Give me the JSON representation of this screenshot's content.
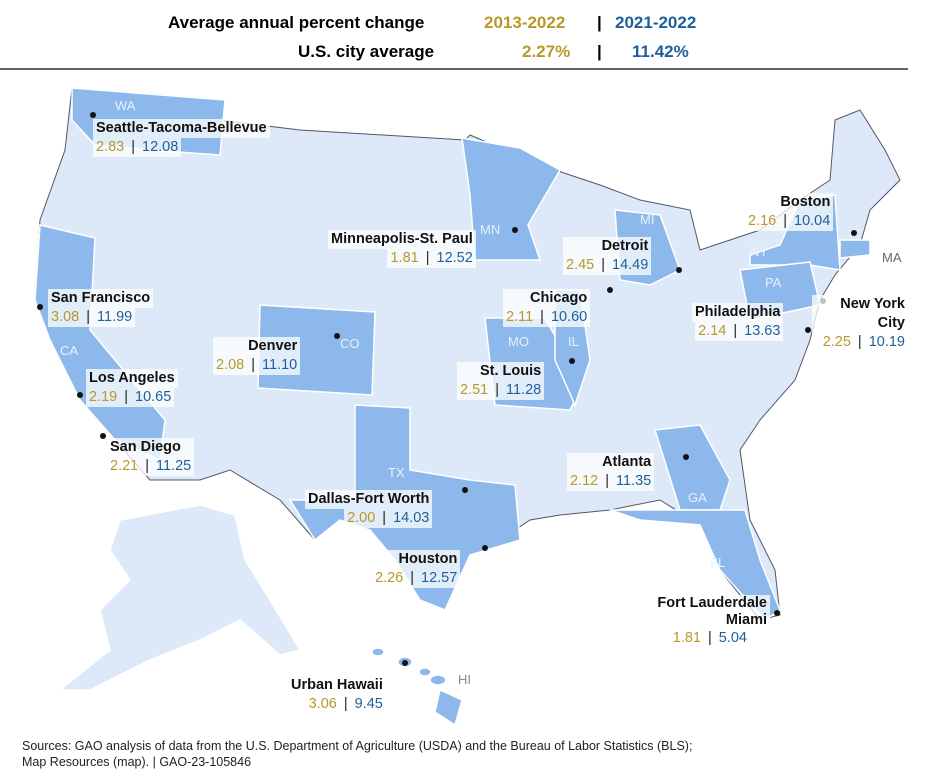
{
  "header": {
    "title": "Average annual percent change",
    "period1": "2013-2022",
    "period2": "2021-2022",
    "avg_label": "U.S. city average",
    "avg1": "2.27%",
    "avg2": "11.42%",
    "sep": "|"
  },
  "colors": {
    "gold": "#b8982a",
    "blue": "#1f5f99",
    "state": "#dde9f8",
    "highlight": "#8cb8ec"
  },
  "states": [
    "WA",
    "MN",
    "MI",
    "NY",
    "PA",
    "MA",
    "CA",
    "CO",
    "MO",
    "IL",
    "TX",
    "GA",
    "FL",
    "HI"
  ],
  "cities": [
    {
      "name": "Seattle-Tacoma-Bellevue",
      "v1": "2.83",
      "v2": "12.08"
    },
    {
      "name": "Minneapolis-St. Paul",
      "v1": "1.81",
      "v2": "12.52"
    },
    {
      "name": "Detroit",
      "v1": "2.45",
      "v2": "14.49"
    },
    {
      "name": "Boston",
      "v1": "2.16",
      "v2": "10.04"
    },
    {
      "name": "San Francisco",
      "v1": "3.08",
      "v2": "11.99"
    },
    {
      "name": "Chicago",
      "v1": "2.11",
      "v2": "10.60"
    },
    {
      "name": "Philadelphia",
      "v1": "2.14",
      "v2": "13.63"
    },
    {
      "name": "New York City",
      "v1": "2.25",
      "v2": "10.19"
    },
    {
      "name": "Denver",
      "v1": "2.08",
      "v2": "11.10"
    },
    {
      "name": "St. Louis",
      "v1": "2.51",
      "v2": "11.28"
    },
    {
      "name": "Los Angeles",
      "v1": "2.19",
      "v2": "10.65"
    },
    {
      "name": "San Diego",
      "v1": "2.21",
      "v2": "11.25"
    },
    {
      "name": "Atlanta",
      "v1": "2.12",
      "v2": "11.35"
    },
    {
      "name": "Dallas-Fort Worth",
      "v1": "2.00",
      "v2": "14.03"
    },
    {
      "name": "Houston",
      "v1": "2.26",
      "v2": "12.57"
    },
    {
      "name": "Fort Lauderdale Miami",
      "v1": "1.81",
      "v2": "5.04"
    },
    {
      "name": "Urban Hawaii",
      "v1": "3.06",
      "v2": "9.45"
    }
  ],
  "source": {
    "line1": "Sources: GAO analysis of data from the U.S. Department of Agriculture (USDA) and the Bureau of Labor Statistics (BLS);",
    "line2": "Map Resources (map).  |  GAO-23-105846"
  }
}
